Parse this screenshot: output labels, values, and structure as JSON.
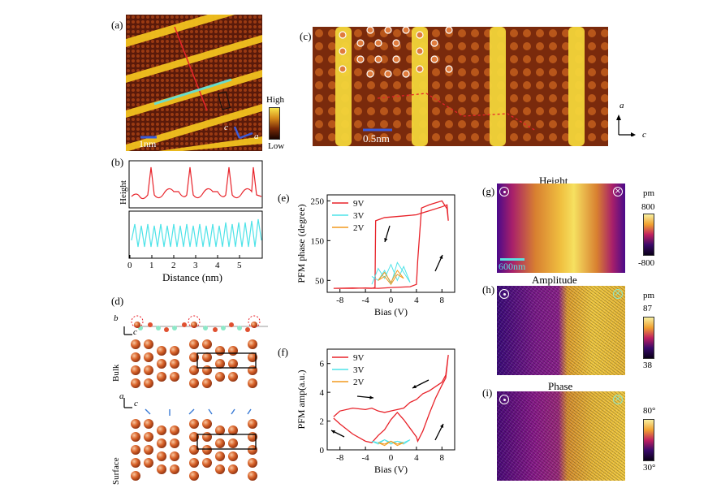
{
  "panels": {
    "a": {
      "label": "(a)",
      "scale": "1nm",
      "colorbar_high": "High",
      "colorbar_low": "Low",
      "axis_c": "c",
      "axis_a": "a"
    },
    "b": {
      "label": "(b)",
      "ylabel": "Height",
      "xlabel": "Distance (nm)",
      "xticks": [
        "0",
        "1",
        "2",
        "3",
        "4",
        "5"
      ]
    },
    "c": {
      "label": "(c)",
      "scale": "0.5nm",
      "axis_a": "a",
      "axis_c": "c"
    },
    "d": {
      "label": "(d)",
      "axis_b": "b",
      "axis_c1": "c",
      "axis_a": "a",
      "axis_c2": "c",
      "bulk": "Bulk",
      "surface": "Surface"
    },
    "g": {
      "label": "(g)",
      "title": "Height",
      "unit": "pm",
      "cb_max": "800",
      "cb_min": "-800",
      "scale": "600nm"
    },
    "h": {
      "label": "(h)",
      "title": "Amplitude",
      "unit": "pm",
      "cb_max": "87",
      "cb_min": "38"
    },
    "i": {
      "label": "(i)",
      "title": "Phase",
      "cb_max": "80°",
      "cb_min": "30°"
    }
  },
  "chart_data": [
    {
      "id": "e",
      "label": "(e)",
      "type": "line",
      "xlabel": "Bias (V)",
      "ylabel": "PFM phase (degree)",
      "xlim": [
        -10,
        10
      ],
      "ylim": [
        20,
        265
      ],
      "xticks": [
        "-8",
        "-4",
        "0",
        "4",
        "8"
      ],
      "yticks": [
        "50",
        "150",
        "250"
      ],
      "legend": [
        "9V",
        "3V",
        "2V"
      ],
      "colors": [
        "#e8232a",
        "#4fe3e8",
        "#f29a1f"
      ],
      "series": [
        {
          "name": "9V",
          "x": [
            -9,
            -6,
            -3,
            -2.5,
            -2.4,
            -1,
            2,
            4,
            5,
            6,
            8,
            8.8,
            9,
            8.8,
            8,
            6,
            4.8,
            4.2,
            4,
            3,
            0,
            -2,
            -4,
            -6,
            -9
          ],
          "y": [
            30,
            31,
            30,
            32,
            200,
            208,
            212,
            215,
            220,
            225,
            235,
            240,
            200,
            230,
            250,
            240,
            232,
            100,
            40,
            34,
            32,
            30,
            31,
            30,
            30
          ]
        },
        {
          "name": "3V",
          "x": [
            -3,
            -2,
            -1,
            0,
            1,
            2,
            3,
            2,
            1,
            0,
            -1,
            -2,
            -3
          ],
          "y": [
            40,
            80,
            55,
            90,
            50,
            85,
            45,
            70,
            95,
            40,
            75,
            50,
            60
          ]
        },
        {
          "name": "2V",
          "x": [
            -2,
            -1,
            0,
            1,
            2,
            1,
            0,
            -1,
            -2
          ],
          "y": [
            50,
            70,
            45,
            75,
            55,
            65,
            40,
            60,
            50
          ]
        }
      ]
    },
    {
      "id": "f",
      "label": "(f)",
      "type": "line",
      "xlabel": "Bias (V)",
      "ylabel": "PFM amp(a.u.)",
      "xlim": [
        -10,
        10
      ],
      "ylim": [
        0,
        7
      ],
      "xticks": [
        "-8",
        "-4",
        "0",
        "4",
        "8"
      ],
      "yticks": [
        "0",
        "2",
        "4",
        "6"
      ],
      "legend": [
        "9V",
        "3V",
        "2V"
      ],
      "colors": [
        "#e8232a",
        "#4fe3e8",
        "#f29a1f"
      ],
      "series": [
        {
          "name": "9V",
          "x": [
            -9,
            -8,
            -6,
            -4,
            -3,
            -2,
            -1,
            0,
            1,
            2,
            3,
            4,
            5,
            6,
            7,
            8,
            8.6,
            9,
            8.6,
            8,
            7,
            6,
            5,
            4.2,
            4,
            3,
            2,
            1,
            0,
            -1,
            -2,
            -3,
            -4,
            -6,
            -8,
            -9
          ],
          "y": [
            2.3,
            2.7,
            2.9,
            2.8,
            2.9,
            2.7,
            2.6,
            2.7,
            2.8,
            2.9,
            3.3,
            3.5,
            3.9,
            4.1,
            4.4,
            4.7,
            5.2,
            6.6,
            5.0,
            4.5,
            3.6,
            2.5,
            1.3,
            0.6,
            0.9,
            1.5,
            2.1,
            2.6,
            2.1,
            1.4,
            1.0,
            0.5,
            0.6,
            1.1,
            1.8,
            2.2
          ]
        },
        {
          "name": "3V",
          "x": [
            -3,
            -2,
            -1,
            0,
            1,
            2,
            3,
            2,
            1,
            0,
            -1,
            -2,
            -3
          ],
          "y": [
            0.6,
            0.4,
            0.7,
            0.5,
            0.6,
            0.4,
            0.7,
            0.5,
            0.6,
            0.4,
            0.7,
            0.5,
            0.6
          ]
        },
        {
          "name": "2V",
          "x": [
            -2,
            -1,
            0,
            1,
            2,
            1,
            0,
            -1,
            -2
          ],
          "y": [
            0.5,
            0.3,
            0.6,
            0.4,
            0.5,
            0.3,
            0.6,
            0.4,
            0.5
          ]
        }
      ]
    }
  ]
}
